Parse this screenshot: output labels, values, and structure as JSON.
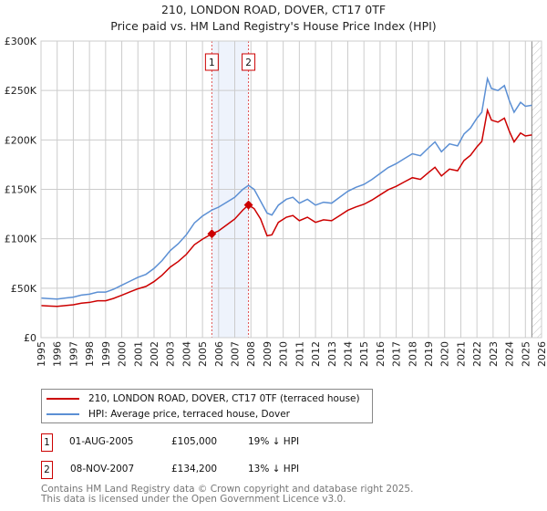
{
  "title": "210, LONDON ROAD, DOVER, CT17 0TF",
  "subtitle": "Price paid vs. HM Land Registry's House Price Index (HPI)",
  "chart_data": {
    "type": "line",
    "xlim": [
      1995,
      2026
    ],
    "ylim": [
      0,
      300000
    ],
    "yticks": [
      {
        "v": 0,
        "label": "£0"
      },
      {
        "v": 50000,
        "label": "£50K"
      },
      {
        "v": 100000,
        "label": "£100K"
      },
      {
        "v": 150000,
        "label": "£150K"
      },
      {
        "v": 200000,
        "label": "£200K"
      },
      {
        "v": 250000,
        "label": "£250K"
      },
      {
        "v": 300000,
        "label": "£300K"
      }
    ],
    "xticks": [
      "1995",
      "1996",
      "1997",
      "1998",
      "1999",
      "2000",
      "2001",
      "2002",
      "2003",
      "2004",
      "2005",
      "2006",
      "2007",
      "2008",
      "2009",
      "2010",
      "2011",
      "2012",
      "2013",
      "2014",
      "2015",
      "2016",
      "2017",
      "2018",
      "2019",
      "2020",
      "2021",
      "2022",
      "2023",
      "2024",
      "2025",
      "2026"
    ],
    "grid": true,
    "data_end": 2025.4,
    "shaded_range": [
      2005.58,
      2007.85
    ],
    "colors": {
      "property": "#cc0000",
      "hpi": "#5b8fd4",
      "shade": "#eef3fc"
    },
    "series": [
      {
        "name": "210, LONDON ROAD, DOVER, CT17 0TF (terraced house)",
        "color": "#cc0000",
        "x": [
          1995,
          1995.5,
          1996,
          1996.5,
          1997,
          1997.5,
          1998,
          1998.5,
          1999,
          1999.5,
          2000,
          2000.5,
          2001,
          2001.5,
          2002,
          2002.5,
          2003,
          2003.5,
          2004,
          2004.5,
          2005,
          2005.58,
          2006,
          2006.5,
          2007,
          2007.5,
          2007.85,
          2008.2,
          2008.6,
          2009,
          2009.3,
          2009.7,
          2010.2,
          2010.6,
          2011,
          2011.5,
          2012,
          2012.5,
          2013,
          2013.5,
          2014,
          2014.5,
          2015,
          2015.5,
          2016,
          2016.5,
          2017,
          2017.5,
          2018,
          2018.5,
          2019,
          2019.4,
          2019.8,
          2020.3,
          2020.8,
          2021.2,
          2021.6,
          2022,
          2022.3,
          2022.65,
          2022.9,
          2023.3,
          2023.7,
          2024,
          2024.3,
          2024.7,
          2025,
          2025.4
        ],
        "y": [
          32400,
          32000,
          31600,
          32400,
          33200,
          34800,
          35600,
          37300,
          37300,
          39700,
          42900,
          46200,
          49400,
          51800,
          56700,
          63200,
          71300,
          77000,
          84200,
          94000,
          99600,
          105000,
          108000,
          114000,
          120000,
          129000,
          134200,
          130500,
          120000,
          103000,
          104000,
          116600,
          121800,
          123500,
          118300,
          121800,
          116600,
          119200,
          118300,
          123500,
          128800,
          132200,
          134900,
          139200,
          144400,
          149600,
          153100,
          157500,
          161800,
          160100,
          167000,
          172300,
          163600,
          170500,
          168800,
          179200,
          184400,
          193100,
          198400,
          230000,
          220000,
          218000,
          222000,
          209000,
          198000,
          207000,
          204000,
          205000
        ]
      },
      {
        "name": "HPI: Average price, terraced house, Dover",
        "color": "#5b8fd4",
        "x": [
          1995,
          1995.5,
          1996,
          1996.5,
          1997,
          1997.5,
          1998,
          1998.5,
          1999,
          1999.5,
          2000,
          2000.5,
          2001,
          2001.5,
          2002,
          2002.5,
          2003,
          2003.5,
          2004,
          2004.5,
          2005,
          2005.58,
          2006,
          2006.5,
          2007,
          2007.5,
          2007.85,
          2008.2,
          2008.6,
          2009,
          2009.3,
          2009.7,
          2010.2,
          2010.6,
          2011,
          2011.5,
          2012,
          2012.5,
          2013,
          2013.5,
          2014,
          2014.5,
          2015,
          2015.5,
          2016,
          2016.5,
          2017,
          2017.5,
          2018,
          2018.5,
          2019,
          2019.4,
          2019.8,
          2020.3,
          2020.8,
          2021.2,
          2021.6,
          2022,
          2022.3,
          2022.65,
          2022.9,
          2023.3,
          2023.7,
          2024,
          2024.3,
          2024.7,
          2025,
          2025.4
        ],
        "y": [
          40000,
          39500,
          39000,
          40000,
          41000,
          43000,
          44000,
          46000,
          46000,
          49000,
          53000,
          57000,
          61000,
          64000,
          70000,
          78000,
          88000,
          95000,
          104000,
          116000,
          123000,
          129000,
          132000,
          137000,
          142000,
          150000,
          154000,
          150000,
          138000,
          126000,
          124000,
          134000,
          140000,
          142000,
          136000,
          140000,
          134000,
          137000,
          136000,
          142000,
          148000,
          152000,
          155000,
          160000,
          166000,
          172000,
          176000,
          181000,
          186000,
          184000,
          192000,
          198000,
          188000,
          196000,
          194000,
          206000,
          212000,
          222000,
          228000,
          262000,
          252000,
          250000,
          255000,
          240000,
          228000,
          238000,
          234000,
          235000
        ]
      }
    ],
    "sales": [
      {
        "id": "1",
        "x": 2005.58,
        "y": 105000,
        "date": "01-AUG-2005",
        "price": "£105,000",
        "hpi_diff": "19% ↓ HPI"
      },
      {
        "id": "2",
        "x": 2007.85,
        "y": 134200,
        "date": "08-NOV-2007",
        "price": "£134,200",
        "hpi_diff": "13% ↓ HPI"
      }
    ]
  },
  "footer": {
    "line1": "Contains HM Land Registry data © Crown copyright and database right 2025.",
    "line2": "This data is licensed under the Open Government Licence v3.0."
  }
}
